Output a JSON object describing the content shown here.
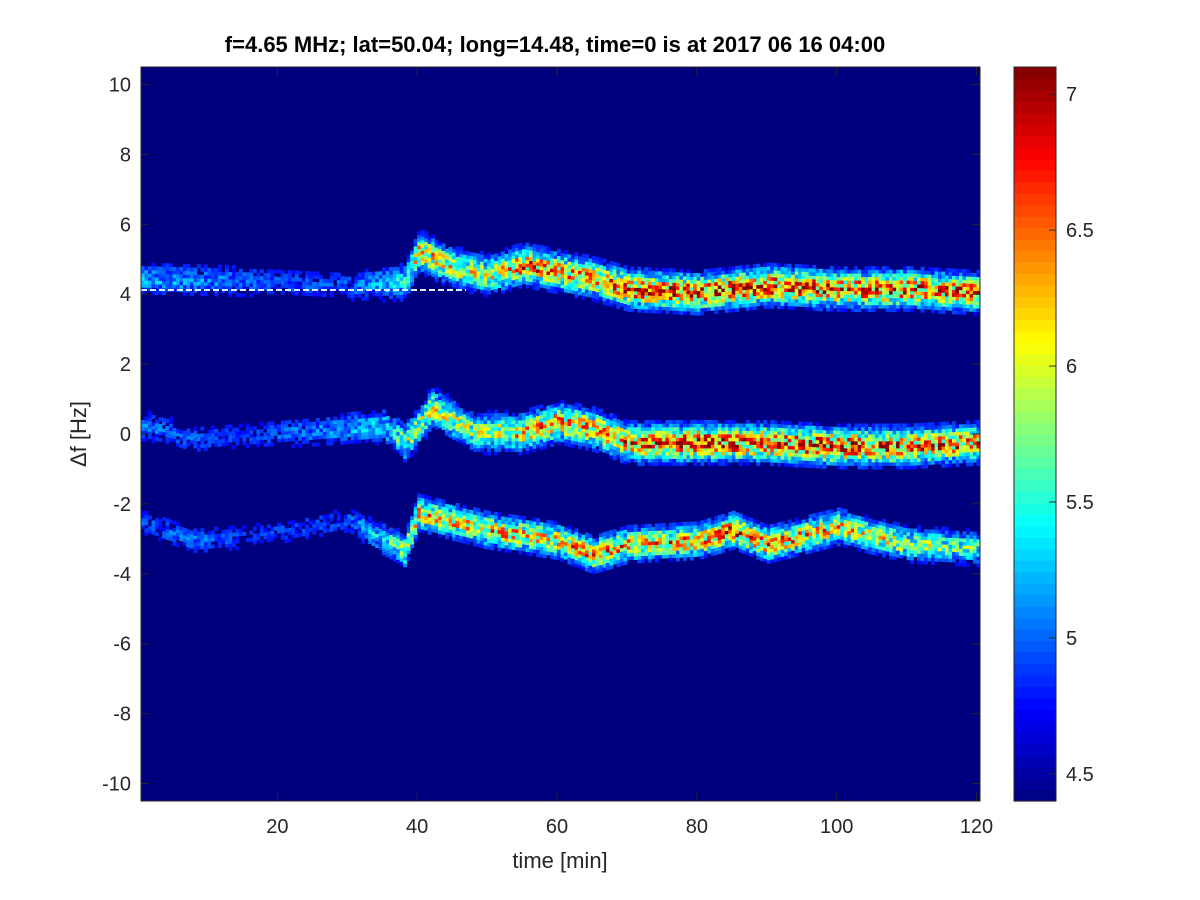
{
  "chart_data": {
    "type": "heatmap",
    "title": "f=4.65 MHz;  lat=50.04; long=14.48, time=0 is at 2017 06 16 04:00",
    "xlabel": "time [min]",
    "ylabel": "Δf [Hz]",
    "xlim": [
      0.5,
      120.5
    ],
    "ylim": [
      -10.5,
      10.5
    ],
    "xticks": [
      20,
      40,
      60,
      80,
      100,
      120
    ],
    "yticks": [
      -10,
      -8,
      -6,
      -4,
      -2,
      0,
      2,
      4,
      6,
      8,
      10
    ],
    "colormap": "jet",
    "clim": [
      4.4,
      7.1
    ],
    "colorbar_ticks": [
      4.5,
      5,
      5.5,
      6,
      6.5,
      7
    ],
    "background_value": 4.45,
    "traces": [
      {
        "name": "upper band",
        "points": [
          [
            1,
            4.4
          ],
          [
            10,
            4.35
          ],
          [
            20,
            4.3
          ],
          [
            30,
            4.2
          ],
          [
            38,
            4.3
          ],
          [
            40,
            5.2
          ],
          [
            45,
            4.7
          ],
          [
            50,
            4.5
          ],
          [
            55,
            4.8
          ],
          [
            60,
            4.6
          ],
          [
            65,
            4.4
          ],
          [
            70,
            4.1
          ],
          [
            80,
            4.0
          ],
          [
            90,
            4.2
          ],
          [
            100,
            4.1
          ],
          [
            110,
            4.1
          ],
          [
            120,
            4.0
          ]
        ],
        "intensity": [
          5.3,
          5.2,
          5.0,
          5.0,
          5.6,
          6.5,
          6.3,
          6.2,
          6.8,
          6.6,
          6.5,
          6.9,
          7.0,
          7.0,
          6.9,
          6.9,
          6.8
        ],
        "spread": 0.9
      },
      {
        "name": "middle band",
        "points": [
          [
            1,
            0.2
          ],
          [
            8,
            -0.2
          ],
          [
            15,
            -0.1
          ],
          [
            35,
            0.2
          ],
          [
            38,
            -0.3
          ],
          [
            42,
            0.7
          ],
          [
            48,
            0.0
          ],
          [
            55,
            0.0
          ],
          [
            60,
            0.3
          ],
          [
            65,
            0.1
          ],
          [
            70,
            -0.3
          ],
          [
            80,
            -0.3
          ],
          [
            90,
            -0.3
          ],
          [
            100,
            -0.4
          ],
          [
            110,
            -0.4
          ],
          [
            120,
            -0.3
          ]
        ],
        "intensity": [
          5.1,
          5.0,
          4.9,
          5.4,
          6.0,
          6.2,
          6.0,
          6.5,
          6.7,
          6.6,
          6.8,
          7.0,
          6.9,
          7.0,
          6.8,
          6.7
        ],
        "spread": 0.9
      },
      {
        "name": "lower band",
        "points": [
          [
            1,
            -2.6
          ],
          [
            8,
            -3.1
          ],
          [
            15,
            -3.0
          ],
          [
            30,
            -2.5
          ],
          [
            38,
            -3.4
          ],
          [
            40,
            -2.3
          ],
          [
            50,
            -2.8
          ],
          [
            60,
            -3.1
          ],
          [
            65,
            -3.5
          ],
          [
            70,
            -3.2
          ],
          [
            80,
            -3.1
          ],
          [
            85,
            -2.8
          ],
          [
            90,
            -3.2
          ],
          [
            100,
            -2.7
          ],
          [
            110,
            -3.2
          ],
          [
            120,
            -3.3
          ]
        ],
        "intensity": [
          5.0,
          5.1,
          4.9,
          5.0,
          6.0,
          6.4,
          6.5,
          6.4,
          6.8,
          6.5,
          6.6,
          6.9,
          6.7,
          6.4,
          6.1,
          5.8
        ],
        "spread": 0.8
      }
    ],
    "reference_line": {
      "y": 4.12,
      "x_range": [
        0.5,
        47
      ]
    }
  }
}
